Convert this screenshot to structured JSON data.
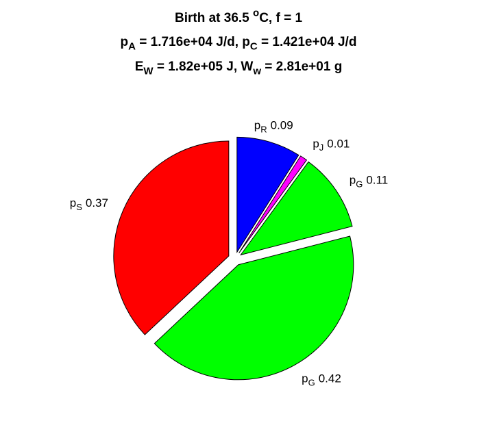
{
  "chart_data": {
    "type": "pie",
    "title": [
      [
        "Birth at 36.5 ",
        {
          "sup": "o"
        },
        "C, f = 1"
      ],
      [
        "p",
        {
          "sub": "A"
        },
        " = 1.716e+04 J/d, p",
        {
          "sub": "C"
        },
        " = 1.421e+04 J/d"
      ],
      [
        "E",
        {
          "sub": "W"
        },
        " = 1.82e+05 J, W",
        {
          "sub": "w"
        },
        " = 2.81e+01 g"
      ]
    ],
    "categories": [
      [
        "p",
        {
          "sub": "R"
        }
      ],
      [
        "p",
        {
          "sub": "J"
        }
      ],
      [
        "p",
        {
          "sub": "G"
        }
      ],
      [
        "p",
        {
          "sub": "G"
        }
      ],
      [
        "p",
        {
          "sub": "S"
        }
      ]
    ],
    "values": [
      0.09,
      0.01,
      0.11,
      0.42,
      0.37
    ],
    "colors": [
      "#0000ff",
      "#ff00ff",
      "#00ff00",
      "#00ff00",
      "#ff0000"
    ],
    "exploded": true
  }
}
